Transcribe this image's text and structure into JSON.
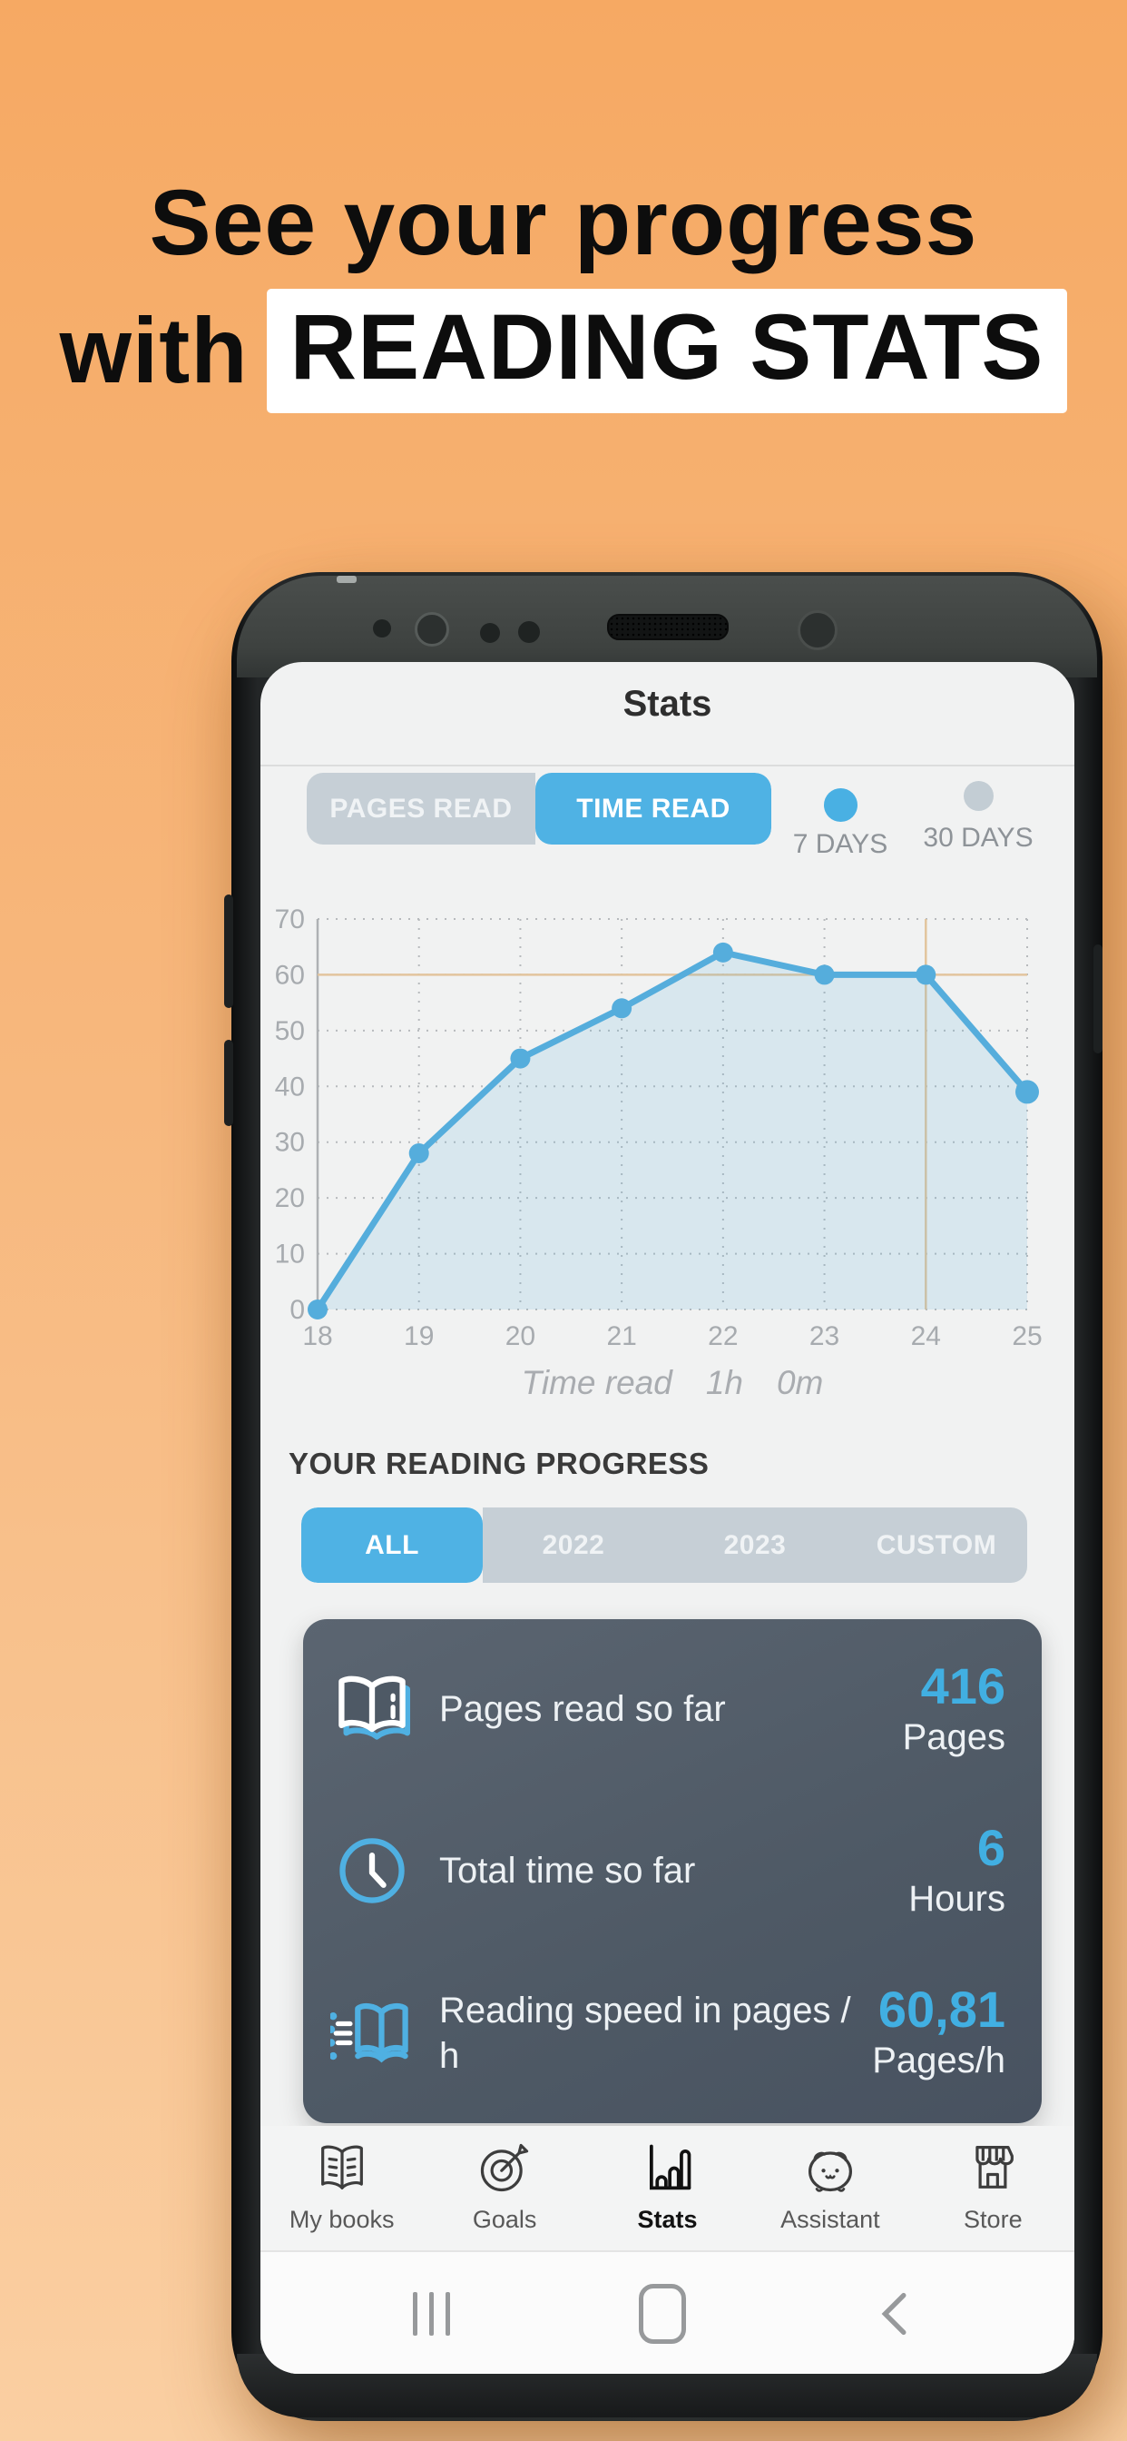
{
  "headline": {
    "line1": "See your progress",
    "line2_prefix": "with",
    "line2_highlight": "READING STATS"
  },
  "app": {
    "title": "Stats",
    "metric_tabs": {
      "pages": "PAGES READ",
      "time": "TIME READ"
    },
    "legend": {
      "d7": "7 DAYS",
      "d30": "30 DAYS"
    },
    "progress_heading": "YOUR READING PROGRESS",
    "period_tabs": {
      "all": "ALL",
      "y2022": "2022",
      "y2023": "2023",
      "custom": "CUSTOM"
    },
    "stats": {
      "row1": {
        "label": "Pages read so far",
        "value": "416",
        "unit": "Pages"
      },
      "row2": {
        "label": "Total time so far",
        "value": "6",
        "unit": "Hours"
      },
      "row3": {
        "label": "Reading speed in pages / h",
        "value": "60,81",
        "unit": "Pages/h"
      }
    },
    "nav": {
      "books": "My books",
      "goals": "Goals",
      "stats": "Stats",
      "assistant": "Assistant",
      "store": "Store"
    }
  },
  "colors": {
    "accent_blue": "#4FB2E4",
    "segment_gray": "#C6CFD6",
    "legend_gray_dot": "#C3CDD4",
    "card_bg": "#4E5965",
    "value_blue": "#41AFE2",
    "background_top": "#F6A963",
    "background_bottom": "#FACFA2"
  },
  "chart_data": {
    "type": "area",
    "title": "",
    "x": [
      18,
      19,
      20,
      21,
      22,
      23,
      24,
      25
    ],
    "series": [
      {
        "name": "7 DAYS",
        "values": [
          0,
          28,
          45,
          54,
          64,
          60,
          60,
          39
        ]
      }
    ],
    "ylim": [
      0,
      70
    ],
    "ytick_step": 10,
    "grid": "dotted",
    "legend_position": "top-right",
    "ref_h": 60,
    "ref_v": 24,
    "ref_color": "#E2C59E",
    "line_color": "#55ADDC",
    "fill_color": "rgba(85,173,220,0.16)",
    "caption_parts": [
      "Time read",
      "1h",
      "0m"
    ]
  }
}
